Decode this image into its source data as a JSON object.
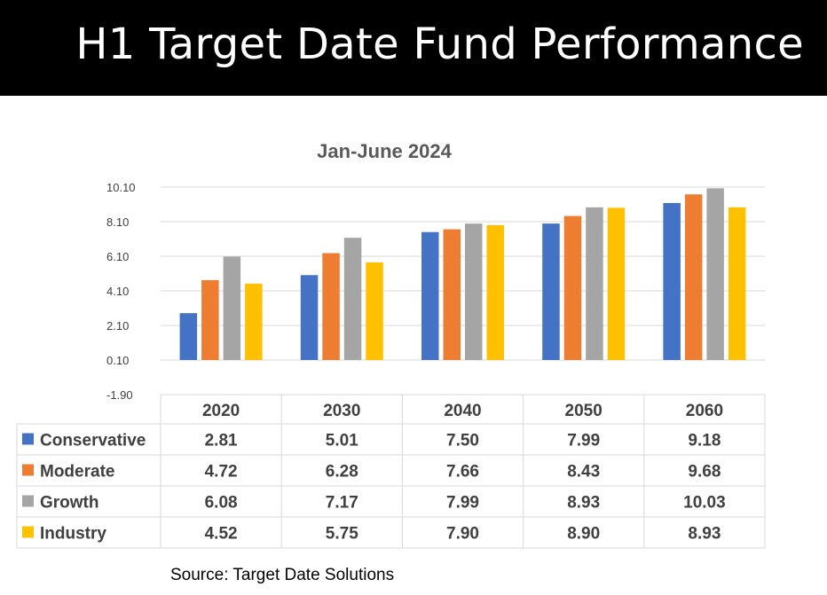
{
  "slide": {
    "title": "H1 Target Date Fund Performance",
    "source": "Source: Target Date Solutions"
  },
  "chart_data": {
    "type": "bar",
    "title": "Jan-June 2024",
    "categories": [
      "2020",
      "2030",
      "2040",
      "2050",
      "2060"
    ],
    "series": [
      {
        "name": "Conservative",
        "color": "#4472C4",
        "values": [
          2.81,
          5.01,
          7.5,
          7.99,
          9.18
        ],
        "labels": [
          "2.81",
          "5.01",
          "7.50",
          "7.99",
          "9.18"
        ]
      },
      {
        "name": "Moderate",
        "color": "#ED7D31",
        "values": [
          4.72,
          6.28,
          7.66,
          8.43,
          9.68
        ],
        "labels": [
          "4.72",
          "6.28",
          "7.66",
          "8.43",
          "9.68"
        ]
      },
      {
        "name": "Growth",
        "color": "#A5A5A5",
        "values": [
          6.08,
          7.17,
          7.99,
          8.93,
          10.03
        ],
        "labels": [
          "6.08",
          "7.17",
          "7.99",
          "8.93",
          "10.03"
        ]
      },
      {
        "name": "Industry",
        "color": "#FFC000",
        "values": [
          4.52,
          5.75,
          7.9,
          8.9,
          8.93
        ],
        "labels": [
          "4.52",
          "5.75",
          "7.90",
          "8.90",
          "8.93"
        ]
      }
    ],
    "ylim": [
      -1.9,
      10.1
    ],
    "yticks": [
      "-1.90",
      "0.10",
      "2.10",
      "4.10",
      "6.10",
      "8.10",
      "10.10"
    ],
    "grid": true,
    "legend": "data-table"
  }
}
